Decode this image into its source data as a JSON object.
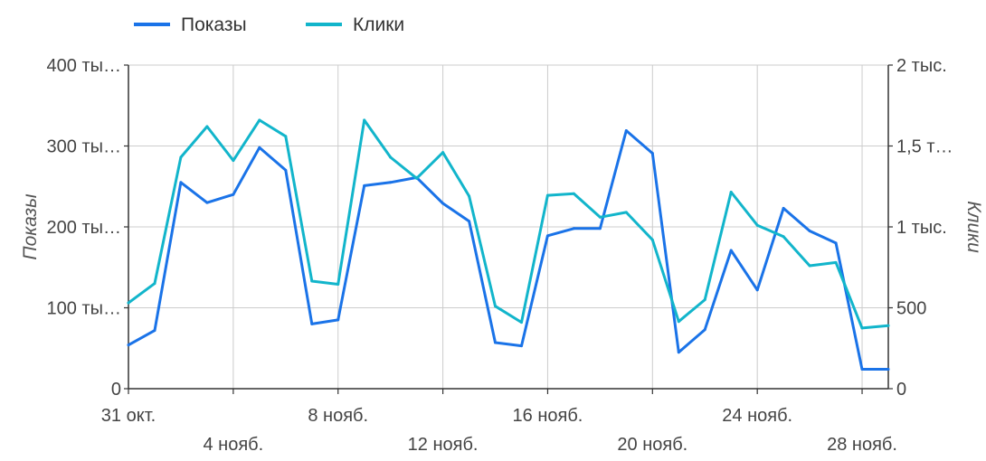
{
  "chart_data": {
    "type": "line",
    "x": [
      "31 окт.",
      "1 нояб.",
      "2 нояб.",
      "3 нояб.",
      "4 нояб.",
      "5 нояб.",
      "6 нояб.",
      "7 нояб.",
      "8 нояб.",
      "9 нояб.",
      "10 нояб.",
      "11 нояб.",
      "12 нояб.",
      "13 нояб.",
      "14 нояб.",
      "15 нояб.",
      "16 нояб.",
      "17 нояб.",
      "18 нояб.",
      "19 нояб.",
      "20 нояб.",
      "21 нояб.",
      "22 нояб.",
      "23 нояб.",
      "24 нояб.",
      "25 нояб.",
      "26 нояб.",
      "27 нояб.",
      "28 нояб.",
      "29 нояб."
    ],
    "x_tick_labels": [
      "31 окт.",
      "4 нояб.",
      "8 нояб.",
      "12 нояб.",
      "16 нояб.",
      "20 нояб.",
      "24 нояб.",
      "28 нояб."
    ],
    "series": [
      {
        "name": "Показы",
        "axis": "left",
        "color": "#1a73e8",
        "values": [
          54000,
          72000,
          255000,
          230000,
          240000,
          298000,
          270000,
          80000,
          85000,
          251000,
          255000,
          261000,
          229000,
          207000,
          57000,
          53000,
          189000,
          198000,
          198000,
          319000,
          291000,
          45000,
          73000,
          171000,
          122000,
          223000,
          195000,
          180000,
          24000,
          24000
        ]
      },
      {
        "name": "Клики",
        "axis": "right",
        "color": "#12b5cb",
        "values": [
          530,
          650,
          1430,
          1620,
          1410,
          1660,
          1560,
          665,
          645,
          1660,
          1430,
          1300,
          1460,
          1190,
          510,
          410,
          1195,
          1205,
          1060,
          1090,
          920,
          415,
          550,
          1215,
          1010,
          940,
          760,
          780,
          375,
          390
        ]
      }
    ],
    "y_left": {
      "label": "Показы",
      "min": 0,
      "max": 400000,
      "ticks": [
        0,
        100000,
        200000,
        300000,
        400000
      ],
      "tick_labels": [
        "0",
        "100 ты…",
        "200 ты…",
        "300 ты…",
        "400 ты…"
      ]
    },
    "y_right": {
      "label": "Клики",
      "min": 0,
      "max": 2000,
      "ticks": [
        0,
        500,
        1000,
        1500,
        2000
      ],
      "tick_labels": [
        "0",
        "500",
        "1 тыс.",
        "1,5 т…",
        "2 тыс."
      ]
    },
    "grid": true,
    "legend_position": "top-left"
  }
}
